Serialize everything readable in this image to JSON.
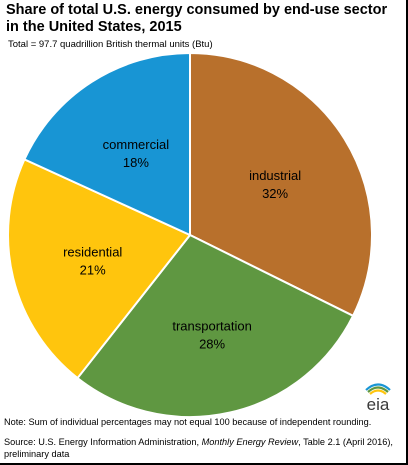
{
  "chart_data": {
    "type": "pie",
    "title": "Share of total U.S. energy consumed by end-use sector in the United States, 2015",
    "subtitle": "Total = 97.7 quadrillion British thermal units (Btu)",
    "slices": [
      {
        "name": "industrial",
        "value": 32,
        "label": "32%",
        "color": "#B8702C"
      },
      {
        "name": "transportation",
        "value": 28,
        "label": "28%",
        "color": "#5F9741"
      },
      {
        "name": "residential",
        "value": 21,
        "label": "21%",
        "color": "#FFC50D"
      },
      {
        "name": "commercial",
        "value": 18,
        "label": "18%",
        "color": "#1895D4"
      }
    ],
    "start_angle_deg": 0,
    "direction": "clockwise",
    "legend": "none"
  },
  "footer": {
    "note": "Note: Sum of individual percentages may not equal 100 because of independent rounding.",
    "source_prefix": "Source: U.S. Energy Information Administration, ",
    "source_italic": "Monthly Energy Review",
    "source_suffix": ", Table 2.1 (April 2016), preliminary data"
  },
  "logo": {
    "text": "eia",
    "icon": "eia-logo-icon",
    "stripe_colors": [
      "#1895D4",
      "#5F9741",
      "#FFC50D"
    ]
  }
}
